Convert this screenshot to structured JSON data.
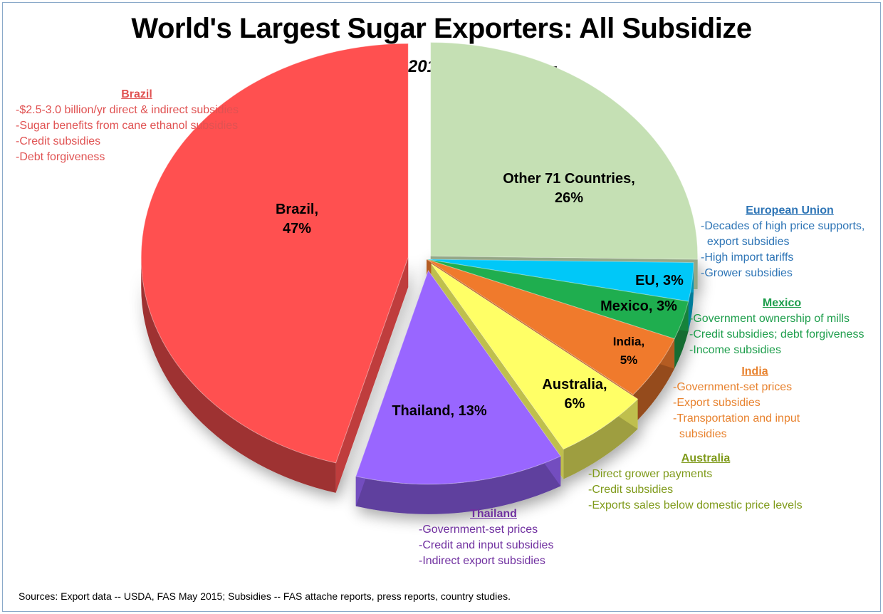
{
  "title": "World's Largest Sugar Exporters: All Subsidize",
  "subtitle": "-- 2010/11-2014/15 Average --",
  "source": "Sources: Export data -- USDA, FAS May 2015; Subsidies -- FAS attache reports, press reports, country studies.",
  "chart_data": {
    "type": "pie",
    "title": "World's Largest Sugar Exporters: All Subsidize",
    "subtitle": "-- 2010/11-2014/15 Average --",
    "slices": [
      {
        "name": "Other 71 Countries",
        "value": 26,
        "label_line1": "Other 71 Countries,",
        "label_line2": "26%",
        "color": "#c5e0b4"
      },
      {
        "name": "EU",
        "value": 3,
        "label_line1": "EU, 3%",
        "label_line2": "",
        "color": "#00c8f8"
      },
      {
        "name": "Mexico",
        "value": 3,
        "label_line1": "Mexico, 3%",
        "label_line2": "",
        "color": "#1fae4f"
      },
      {
        "name": "India",
        "value": 5,
        "label_line1": "India,",
        "label_line2": "5%",
        "color": "#f07a2c"
      },
      {
        "name": "Australia",
        "value": 6,
        "label_line1": "Australia,",
        "label_line2": "6%",
        "color": "#ffff66"
      },
      {
        "name": "Thailand",
        "value": 13,
        "label_line1": "Thailand, 13%",
        "label_line2": "",
        "color": "#9966ff"
      },
      {
        "name": "Brazil",
        "value": 47,
        "label_line1": "Brazil,",
        "label_line2": "47%",
        "color": "#ff5050"
      }
    ]
  },
  "annotations": {
    "brazil": {
      "head": "Brazil",
      "color": "#e05252",
      "lines": [
        "-$2.5-3.0 billion/yr direct & indirect subsidies",
        "-Sugar benefits from cane ethanol subsidies",
        "-Credit subsidies",
        "-Debt forgiveness"
      ]
    },
    "eu": {
      "head": "European Union",
      "color": "#2e75b6",
      "lines": [
        "-Decades of high price supports,",
        "  export subsidies",
        "-High import tariffs",
        "-Grower subsidies"
      ]
    },
    "mexico": {
      "head": "Mexico",
      "color": "#1e9e4c",
      "lines": [
        "-Government ownership of mills",
        "-Credit subsidies; debt forgiveness",
        "-Income subsidies"
      ]
    },
    "india": {
      "head": "India",
      "color": "#e8822e",
      "lines": [
        "-Government-set prices",
        "-Export subsidies",
        "-Transportation and input",
        "  subsidies"
      ]
    },
    "australia": {
      "head": "Australia",
      "color": "#7f9a1a",
      "lines": [
        "-Direct grower payments",
        "-Credit subsidies",
        "-Exports sales below domestic price levels"
      ]
    },
    "thailand": {
      "head": "Thailand",
      "color": "#7030a0",
      "lines": [
        "-Government-set prices",
        "-Credit and input subsidies",
        "-Indirect export subsidies"
      ]
    }
  }
}
